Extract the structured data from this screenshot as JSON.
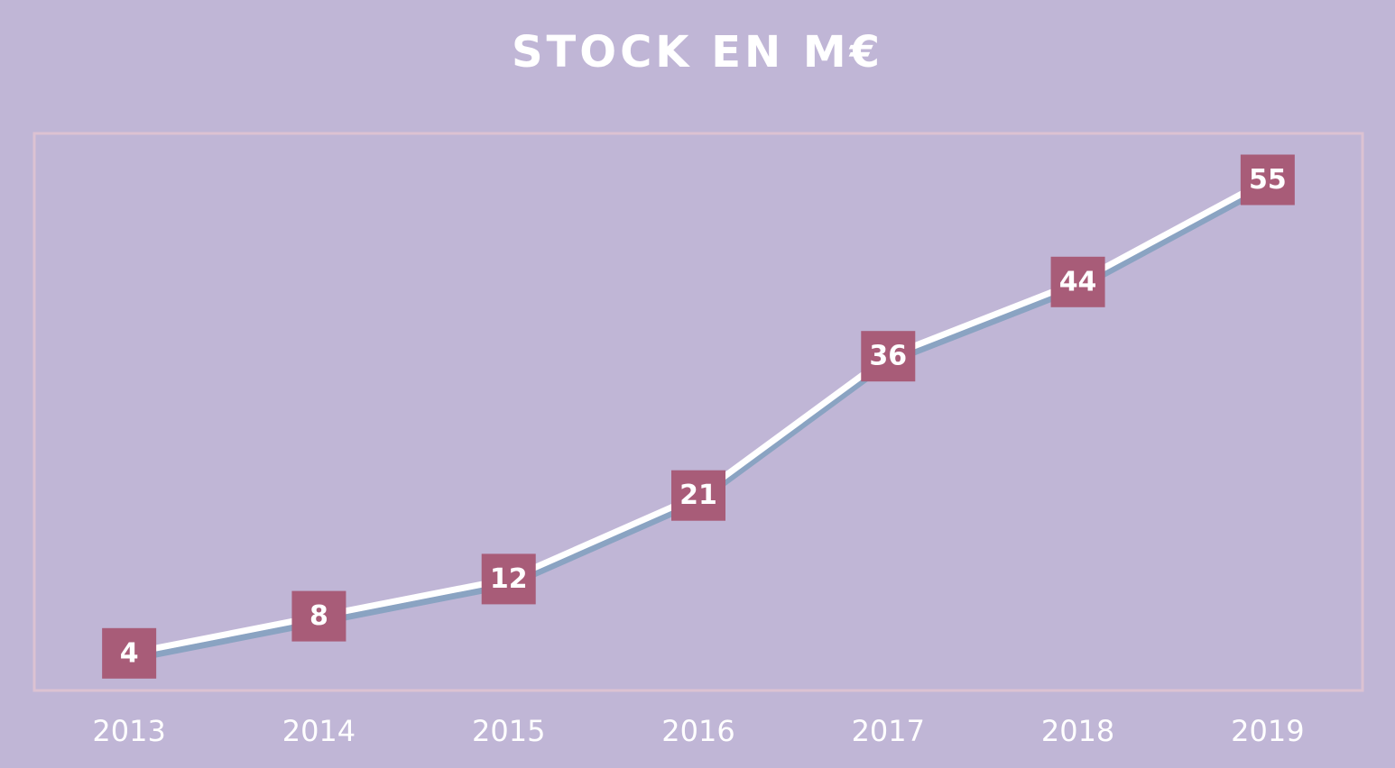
{
  "chart_data": {
    "type": "line",
    "title": "STOCK EN M€",
    "categories": [
      "2013",
      "2014",
      "2015",
      "2016",
      "2017",
      "2018",
      "2019"
    ],
    "values": [
      4,
      8,
      12,
      21,
      36,
      44,
      55
    ],
    "data_labels": [
      "4",
      "8",
      "12",
      "21",
      "36",
      "44",
      "55"
    ],
    "ylim": [
      0,
      60
    ],
    "grid": false,
    "legend": "none",
    "xlabel": "",
    "ylabel": ""
  },
  "colors": {
    "background": "#c0b6d6",
    "line": "#ffffff",
    "line_shadow": "#8aa3c2",
    "marker": "#a85c78",
    "plot_border": "#dcc2d2",
    "drop_line": "#ffffff"
  }
}
